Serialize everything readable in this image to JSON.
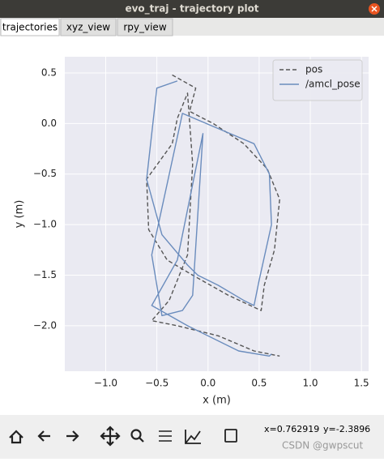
{
  "window": {
    "title": "evo_traj - trajectory plot"
  },
  "tabs": [
    "trajectories",
    "xyz_view",
    "rpy_view"
  ],
  "toolbar": {
    "status_x": "x=0.762919",
    "status_y": "y=-2.3896"
  },
  "watermark": "CSDN @gwpscut",
  "chart_data": {
    "type": "line",
    "xlabel": "x (m)",
    "ylabel": "y (m)",
    "xlim": [
      -1.4,
      1.57
    ],
    "ylim": [
      -2.45,
      0.66
    ],
    "xticks": [
      {
        "value": -1,
        "label": "−1.0"
      },
      {
        "value": -0.5,
        "label": "−0.5"
      },
      {
        "value": 0,
        "label": "0.0"
      },
      0.5,
      {
        "value": 1,
        "label": "1.0"
      },
      1.5
    ],
    "yticks": [
      0.5,
      {
        "value": 0,
        "label": "0.0"
      },
      {
        "value": -0.5,
        "label": "−0.5"
      },
      {
        "value": -1,
        "label": "−1.0"
      },
      {
        "value": -1.5,
        "label": "−1.5"
      },
      {
        "value": -2,
        "label": "−2.0"
      }
    ],
    "grid": true,
    "legend": "upper right",
    "series": [
      {
        "name": "pos",
        "color": "#555555",
        "dashed": true,
        "x": [
          -0.35,
          -0.12,
          -0.18,
          0.05,
          0.35,
          0.58,
          0.7,
          0.65,
          0.55,
          0.52,
          0.2,
          -0.15,
          -0.4,
          -0.58,
          -0.6,
          -0.35,
          -0.3,
          -0.2,
          -0.15,
          -0.2,
          -0.38,
          -0.55,
          -0.3,
          0.1,
          0.45,
          0.7
        ],
        "y": [
          0.48,
          0.35,
          0.12,
          0.0,
          -0.2,
          -0.45,
          -0.75,
          -1.25,
          -1.6,
          -1.85,
          -1.7,
          -1.5,
          -1.35,
          -1.05,
          -0.55,
          -0.2,
          0.05,
          0.3,
          -0.4,
          -1.3,
          -1.75,
          -1.95,
          -2.0,
          -2.1,
          -2.25,
          -2.3
        ]
      },
      {
        "name": "/amcl_pose",
        "color": "#6a8cbd",
        "dashed": false,
        "x": [
          -0.3,
          -0.5,
          -0.6,
          -0.45,
          -0.2,
          -0.1,
          0.1,
          0.35,
          0.45,
          0.5,
          0.62,
          0.6,
          0.45,
          0.1,
          -0.25,
          -0.55,
          -0.45,
          -0.25,
          -0.15,
          -0.05,
          -0.3,
          -0.55,
          -0.2,
          0.3,
          0.6,
          0.62
        ],
        "y": [
          0.42,
          0.35,
          -0.55,
          -1.1,
          -1.4,
          -1.5,
          -1.6,
          -1.75,
          -1.8,
          -1.55,
          -1.0,
          -0.5,
          -0.2,
          -0.05,
          0.1,
          -1.3,
          -1.9,
          -1.85,
          -1.7,
          -0.1,
          -1.35,
          -1.8,
          -2.0,
          -2.25,
          -2.3,
          -2.28
        ]
      }
    ]
  }
}
